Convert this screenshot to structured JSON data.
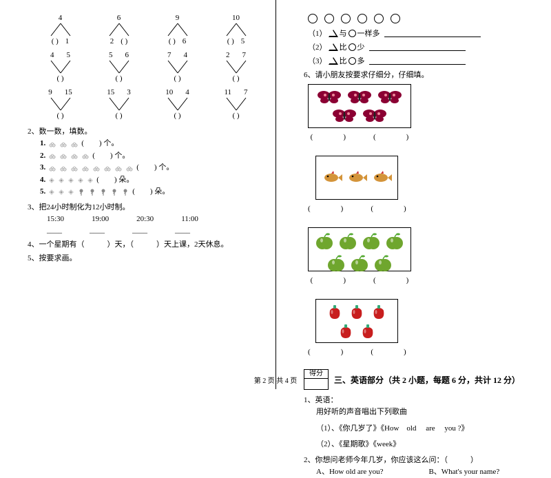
{
  "left": {
    "split_rows": [
      [
        {
          "type": "down",
          "top": [
            "4"
          ],
          "bot": [
            "(   )",
            "1"
          ]
        },
        {
          "type": "down",
          "top": [
            "6"
          ],
          "bot": [
            "2",
            "(   )"
          ]
        },
        {
          "type": "down",
          "top": [
            "9"
          ],
          "bot": [
            "(   )",
            "6"
          ]
        },
        {
          "type": "down",
          "top": [
            "10"
          ],
          "bot": [
            "(   )",
            "5"
          ]
        }
      ],
      [
        {
          "type": "up",
          "top": [
            "4",
            "5"
          ],
          "bot": [
            "(   )"
          ]
        },
        {
          "type": "up",
          "top": [
            "5",
            "6"
          ],
          "bot": [
            "(   )"
          ]
        },
        {
          "type": "up",
          "top": [
            "7",
            "4"
          ],
          "bot": [
            "(   )"
          ]
        },
        {
          "type": "up",
          "top": [
            "2",
            "7"
          ],
          "bot": [
            "(   )"
          ]
        }
      ],
      [
        {
          "type": "up",
          "top": [
            "9",
            "15"
          ],
          "bot": [
            "(   )"
          ]
        },
        {
          "type": "up",
          "top": [
            "15",
            "3"
          ],
          "bot": [
            "(   )"
          ]
        },
        {
          "type": "up",
          "top": [
            "10",
            "4"
          ],
          "bot": [
            "(   )"
          ]
        },
        {
          "type": "up",
          "top": [
            "11",
            "7"
          ],
          "bot": [
            "(   )"
          ]
        }
      ]
    ],
    "q2": "2、数一数，填数。",
    "q2_items": [
      {
        "n": "1.",
        "count": 3,
        "icon": "cherry",
        "tail": "(　　) 个。"
      },
      {
        "n": "2.",
        "count": 4,
        "icon": "cherry",
        "tail": "(　　) 个。"
      },
      {
        "n": "3.",
        "count": 8,
        "icon": "cherry",
        "tail": "(　　) 个。"
      },
      {
        "n": "4.",
        "count": 5,
        "icon": "flower",
        "tail": "(　　) 朵。"
      },
      {
        "n": "5.",
        "count_a": 3,
        "icon_a": "flower",
        "count_b": 5,
        "icon_b": "rose",
        "tail": "(　　) 朵。"
      }
    ],
    "q3": "3、把24小时制化为12小时制。",
    "q3_times": [
      "15:30",
      "19:00",
      "20:30",
      "11:00"
    ],
    "q4": "4、一个星期有（　　　）天，（　　　）天上课，2天休息。",
    "q5": "5、按要求画。"
  },
  "right": {
    "circle_count": 6,
    "comps": [
      "（1）△与○一样多",
      "（2）△比○少",
      "（3）△比○多"
    ],
    "q6": "6、请小朋友按要求仔细分，仔细填。",
    "cells": [
      {
        "box": "b1",
        "icon": "butterfly",
        "count": 5,
        "color": "#8b0033"
      },
      {
        "box": "b2",
        "icon": "fish",
        "count": 3,
        "color": "#d4943a"
      },
      {
        "box": "b3",
        "icon": "apple",
        "count": 7,
        "color": "#6fa62e"
      },
      {
        "box": "b4",
        "icon": "pepper",
        "count": 5,
        "color": "#c81e1e"
      }
    ],
    "paren": "(　　　　)",
    "score_label": "得分",
    "section_title": "三、英语部分（共 2 小题，每题 6 分，共计 12 分）",
    "eng_q1": "1、英语：",
    "eng_q1_sub": "用好听的声音唱出下列歌曲",
    "eng_q1_items": [
      "（1）、《你几岁了》《How　old　 are　 you ?》",
      "（2）、《星期歌》《week》"
    ],
    "eng_q2": "2、你想问老师今年几岁，你应该这么问：（　　　）",
    "eng_q2_opts": "A、How old are you?　　　　　　B、What's your name?"
  },
  "footer": "第 2 页 共 4 页"
}
